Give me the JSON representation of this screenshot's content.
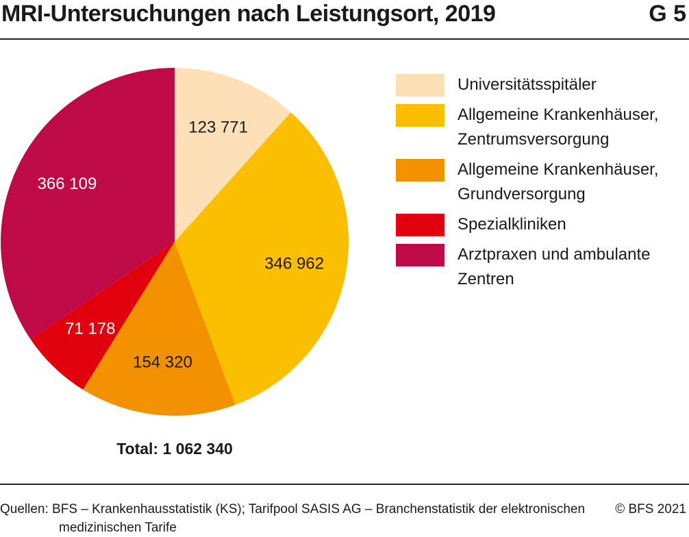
{
  "chart_data": {
    "type": "pie",
    "title": "MRI-Untersuchungen nach Leistungsort, 2019",
    "figure_number": "G 5",
    "categories": [
      "Universitätsspitäler",
      "Allgemeine Krankenhäuser, Zentrumsversorgung",
      "Allgemeine Krankenhäuser, Grundversorgung",
      "Spezialkliniken",
      "Arztpraxen und ambulante Zentren"
    ],
    "values": [
      123771,
      346962,
      154320,
      71178,
      366109
    ],
    "value_labels": [
      "123 771",
      "346 962",
      "154 320",
      "71 178",
      "366 109"
    ],
    "colors": [
      "#fde0b8",
      "#fbbf00",
      "#f39200",
      "#e2000f",
      "#be0a46"
    ],
    "total_label": "Total: 1 062 340",
    "source": "Quellen: BFS – Krankenhausstatistik (KS); Tarifpool SASIS AG – Branchenstatistik der elektronischen medizinischen Tarife",
    "copyright": "© BFS 2021"
  }
}
